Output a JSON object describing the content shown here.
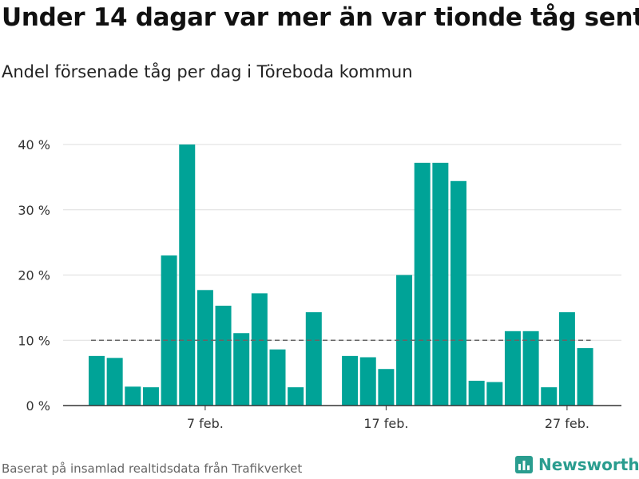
{
  "title": "Under 14 dagar var mer än var tionde tåg sent",
  "subtitle": "Andel försenade tåg per dag i Töreboda kommun",
  "source": "Baserat på insamlad realtidsdata från Trafikverket",
  "brand": "Newsworthy",
  "colors": {
    "bar": "#00a397",
    "reference_line": "#666666",
    "brand": "#2a9d8f"
  },
  "chart_data": {
    "type": "bar",
    "x_type": "date",
    "dates": [
      "2022-02-01",
      "2022-02-02",
      "2022-02-03",
      "2022-02-04",
      "2022-02-05",
      "2022-02-06",
      "2022-02-07",
      "2022-02-08",
      "2022-02-09",
      "2022-02-10",
      "2022-02-11",
      "2022-02-12",
      "2022-02-13",
      "2022-02-14",
      "2022-02-15",
      "2022-02-16",
      "2022-02-17",
      "2022-02-18",
      "2022-02-19",
      "2022-02-20",
      "2022-02-21",
      "2022-02-22",
      "2022-02-23",
      "2022-02-24",
      "2022-02-25",
      "2022-02-26",
      "2022-02-27",
      "2022-02-28"
    ],
    "values": [
      7.6,
      7.3,
      2.9,
      2.8,
      23.0,
      40.0,
      17.7,
      15.3,
      11.1,
      17.2,
      8.6,
      2.8,
      14.3,
      null,
      7.6,
      7.4,
      5.6,
      20.0,
      37.2,
      37.2,
      34.4,
      3.8,
      3.6,
      11.4,
      11.4,
      2.8,
      14.3,
      8.8
    ],
    "reference_line": {
      "y": 10,
      "style": "dashed"
    },
    "x_ticks": [
      {
        "date": "2022-02-07",
        "label": "7 feb."
      },
      {
        "date": "2022-02-17",
        "label": "17 feb."
      },
      {
        "date": "2022-02-27",
        "label": "27 feb."
      }
    ],
    "y_ticks": [
      {
        "value": 0,
        "label": "0 %"
      },
      {
        "value": 10,
        "label": "10 %"
      },
      {
        "value": 20,
        "label": "20 %"
      },
      {
        "value": 30,
        "label": "30 %"
      },
      {
        "value": 40,
        "label": "40 %"
      }
    ],
    "ylim": [
      0,
      40
    ],
    "grid": true
  }
}
